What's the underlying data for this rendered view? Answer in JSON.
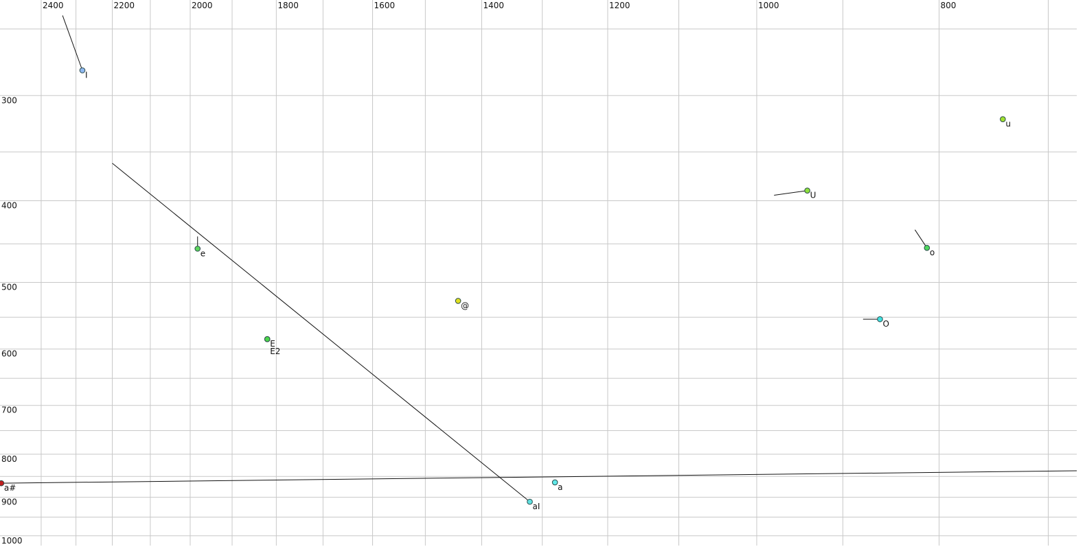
{
  "chart_data": {
    "type": "scatter",
    "log_x": true,
    "log_y": true,
    "x_reversed": true,
    "xlim": [
      2524,
      676
    ],
    "ylim": [
      231,
      1027
    ],
    "xticks": [
      2400,
      2200,
      2000,
      1800,
      1600,
      1400,
      1200,
      1000,
      800
    ],
    "yticks": [
      300,
      400,
      500,
      600,
      700,
      800,
      900,
      1000
    ],
    "xgrid": [
      2400,
      2300,
      2200,
      2100,
      2000,
      1900,
      1800,
      1700,
      1600,
      1500,
      1400,
      1300,
      1200,
      1100,
      1000,
      900,
      800,
      700
    ],
    "ygrid": [
      250,
      300,
      350,
      400,
      450,
      500,
      550,
      600,
      650,
      700,
      750,
      800,
      850,
      900,
      950,
      1000
    ],
    "grid": true,
    "points": [
      {
        "label": "I",
        "x": 2282,
        "y": 280,
        "color": "#8fb8f0",
        "trail_x": 2338,
        "trail_y": 241
      },
      {
        "label": "u",
        "x": 740,
        "y": 320,
        "color": "#a0e030"
      },
      {
        "label": "U",
        "x": 940,
        "y": 389,
        "color": "#8ee03c",
        "trail_x": 979,
        "trail_y": 394
      },
      {
        "label": "e",
        "x": 1982,
        "y": 456,
        "color": "#5ed65e",
        "trail_x": 1982,
        "trail_y": 441
      },
      {
        "label": "o",
        "x": 812,
        "y": 455,
        "color": "#4fd65e",
        "trail_x": 824,
        "trail_y": 433
      },
      {
        "label": "@",
        "x": 1441,
        "y": 526,
        "color": "#e0e020"
      },
      {
        "label": "O",
        "x": 860,
        "y": 553,
        "color": "#40e0e0",
        "trail_x": 878,
        "trail_y": 553
      },
      {
        "label": "E",
        "x": 1820,
        "y": 584,
        "color": "#4cd64c"
      },
      {
        "label": "E2",
        "x": 1820,
        "y": 584,
        "color": "#4cd64c"
      },
      {
        "label": "a",
        "x": 1280,
        "y": 864,
        "color": "#60e8e8"
      },
      {
        "label": "aI",
        "x": 1320,
        "y": 911,
        "color": "#60e0e0",
        "trail_x": 2200,
        "trail_y": 361
      },
      {
        "label": "a#",
        "x": 2520,
        "y": 866,
        "color": "#c02020",
        "trail_x": 676,
        "trail_y": 837
      }
    ]
  }
}
